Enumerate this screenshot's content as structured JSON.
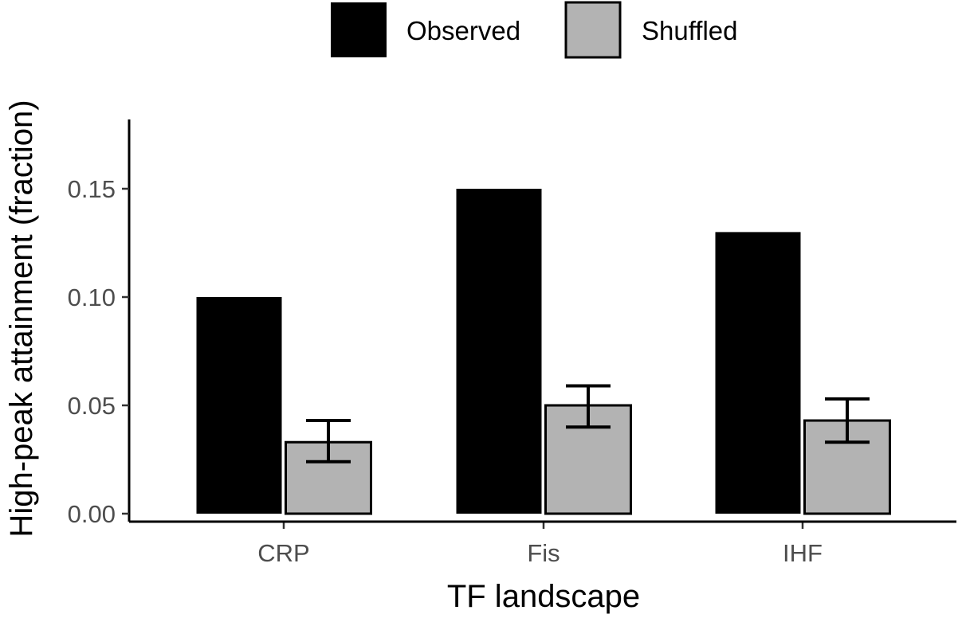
{
  "chart_data": {
    "type": "bar",
    "title": "",
    "xlabel": "TF landscape",
    "ylabel": "High-peak attainment (fraction)",
    "categories": [
      "CRP",
      "Fis",
      "IHF"
    ],
    "series": [
      {
        "name": "Observed",
        "color": "#000000",
        "values": [
          0.1,
          0.15,
          0.13
        ]
      },
      {
        "name": "Shuffled",
        "color": "#b3b3b3",
        "values": [
          0.033,
          0.05,
          0.043
        ],
        "error_low": [
          0.024,
          0.04,
          0.033
        ],
        "error_high": [
          0.043,
          0.059,
          0.053
        ]
      }
    ],
    "ylim": [
      0,
      0.18
    ],
    "yticks": [
      0.0,
      0.05,
      0.1,
      0.15
    ],
    "ytick_labels": [
      "0.00",
      "0.05",
      "0.10",
      "0.15"
    ],
    "legend_position": "top",
    "grid": false
  }
}
